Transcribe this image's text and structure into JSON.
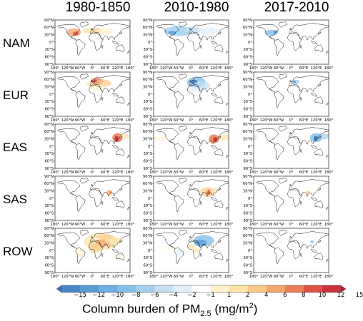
{
  "columns": [
    "1980-1850",
    "2010-1980",
    "2017-2010"
  ],
  "rows": [
    "NAM",
    "EUR",
    "EAS",
    "SAS",
    "ROW"
  ],
  "lat_labels": [
    "90°N",
    "60°N",
    "30°N",
    "0°",
    "30°S",
    "60°S",
    "90°S"
  ],
  "lon_labels": [
    "180°",
    "120°W",
    "60°W",
    "0°",
    "60°E",
    "120°E",
    "180°"
  ],
  "colorbar": {
    "ticks": [
      "−15",
      "−12",
      "−10",
      "−8",
      "−6",
      "−4",
      "−2",
      "−1",
      "1",
      "2",
      "4",
      "6",
      "8",
      "10",
      "12",
      "15"
    ],
    "colors": [
      "#3b6fb6",
      "#4a86c5",
      "#5b9bd5",
      "#6faee0",
      "#86bfe8",
      "#a4d0ef",
      "#c4e0f5",
      "#e3f0fa",
      "#ffffff",
      "#fff2cc",
      "#fde3a7",
      "#f9c98a",
      "#f4a76e",
      "#eb7d57",
      "#dd5245",
      "#c8313a",
      "#b01f2e"
    ],
    "label_main": "Column burden of PM",
    "label_sub": "2.5",
    "label_unit_open": " (mg/m",
    "label_unit_sup": "2",
    "label_unit_close": ")"
  }
}
